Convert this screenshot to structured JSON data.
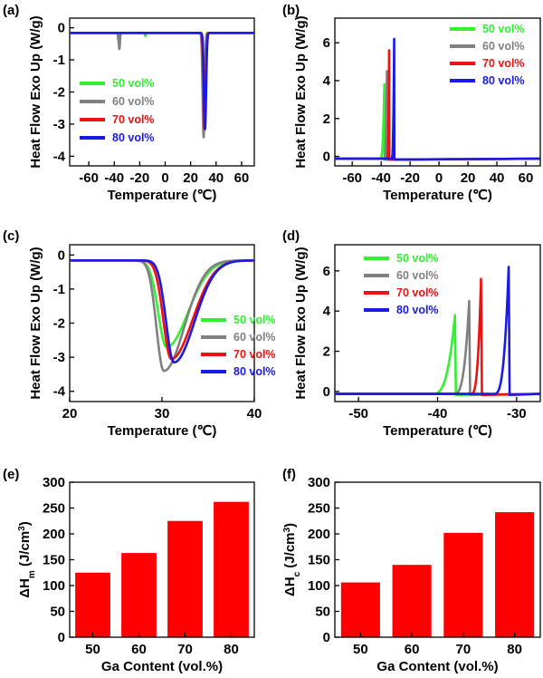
{
  "figure": {
    "background": "#ffffff",
    "series_colors": {
      "50 vol%": "#33ee33",
      "60 vol%": "#808080",
      "70 vol%": "#ee1111",
      "80 vol%": "#1a1ae6"
    }
  },
  "chart_data": [
    {
      "id": "a",
      "panel_label": "(a)",
      "type": "line",
      "title": "",
      "xlabel": "Temperature (℃)",
      "ylabel": "Heat Flow Exo Up (W/g)",
      "xlim": [
        -75,
        70
      ],
      "ylim": [
        -4.3,
        0.3
      ],
      "xticks": [
        -60,
        -40,
        -20,
        0,
        20,
        40,
        60
      ],
      "xtick_labels": [
        "-60",
        "-40",
        "-20",
        "0",
        "20",
        "40",
        "60"
      ],
      "yticks": [
        0,
        -1,
        -2,
        -3,
        -4
      ],
      "ytick_labels": [
        "0",
        "-1",
        "-2",
        "-3",
        "-4"
      ],
      "legend": {
        "position": "bottom-left",
        "entries": [
          "50 vol%",
          "60 vol%",
          "70 vol%",
          "80 vol%"
        ]
      },
      "series": [
        {
          "name": "50 vol%",
          "baseline": -0.16,
          "peaks": [
            {
              "x": -36.5,
              "depth": -0.28,
              "w": 0.5
            },
            {
              "x": -15.5,
              "depth": -0.1,
              "w": 0.4
            },
            {
              "x": 30.5,
              "depth": -2.55,
              "w": 0.9
            }
          ]
        },
        {
          "name": "60 vol%",
          "baseline": -0.16,
          "peaks": [
            {
              "x": -36,
              "depth": -0.5,
              "w": 0.45
            },
            {
              "x": 30.2,
              "depth": -3.25,
              "w": 0.8
            }
          ]
        },
        {
          "name": "70 vol%",
          "baseline": -0.16,
          "peaks": [
            {
              "x": 31,
              "depth": -3.0,
              "w": 0.85
            }
          ]
        },
        {
          "name": "80 vol%",
          "baseline": -0.16,
          "peaks": [
            {
              "x": 31.3,
              "depth": -3.0,
              "w": 0.85
            }
          ]
        }
      ]
    },
    {
      "id": "b",
      "panel_label": "(b)",
      "type": "line",
      "title": "",
      "xlabel": "Temperature (℃)",
      "ylabel": "Heat Flow Exo Up (W/g)",
      "xlim": [
        -72,
        70
      ],
      "ylim": [
        -0.5,
        7.3
      ],
      "xticks": [
        -60,
        -40,
        -20,
        0,
        20,
        40,
        60
      ],
      "xtick_labels": [
        "-60",
        "-40",
        "-20",
        "0",
        "20",
        "40",
        "60"
      ],
      "yticks": [
        0,
        2,
        4,
        6
      ],
      "ytick_labels": [
        "0",
        "2",
        "4",
        "6"
      ],
      "legend": {
        "position": "top-right",
        "entries": [
          "50 vol%",
          "60 vol%",
          "70 vol%",
          "80 vol%"
        ]
      },
      "series": [
        {
          "name": "50 vol%",
          "baseline": -0.12,
          "peak_x": -37.8,
          "peak_y": 3.8,
          "rise": 3.0
        },
        {
          "name": "60 vol%",
          "baseline": -0.12,
          "peak_x": -36.0,
          "peak_y": 4.5,
          "rise": 2.0
        },
        {
          "name": "70 vol%",
          "baseline": -0.12,
          "peak_x": -34.5,
          "peak_y": 5.6,
          "rise": 1.3
        },
        {
          "name": "80 vol%",
          "baseline": -0.12,
          "peak_x": -31.0,
          "peak_y": 6.2,
          "rise": 1.9
        }
      ]
    },
    {
      "id": "c",
      "panel_label": "(c)",
      "type": "line",
      "title": "",
      "xlabel": "Temperature (℃)",
      "ylabel": "Heat Flow Exo Up (W/g)",
      "xlim": [
        20,
        40
      ],
      "ylim": [
        -4.3,
        0.3
      ],
      "xticks": [
        20,
        30,
        40
      ],
      "xtick_labels": [
        "20",
        "30",
        "40"
      ],
      "yticks": [
        0,
        -1,
        -2,
        -3,
        -4
      ],
      "ytick_labels": [
        "0",
        "-1",
        "-2",
        "-3",
        "-4"
      ],
      "legend": {
        "position": "bottom-right",
        "entries": [
          "50 vol%",
          "60 vol%",
          "70 vol%",
          "80 vol%"
        ]
      },
      "series": [
        {
          "name": "50 vol%",
          "baseline": -0.16,
          "peak_x": 30.5,
          "peak_y": -2.7,
          "wl": 0.9,
          "wr": 2.3
        },
        {
          "name": "60 vol%",
          "baseline": -0.16,
          "peak_x": 30.2,
          "peak_y": -3.4,
          "wl": 0.8,
          "wr": 2.2
        },
        {
          "name": "70 vol%",
          "baseline": -0.16,
          "peak_x": 31.0,
          "peak_y": -3.05,
          "wl": 0.85,
          "wr": 2.3
        },
        {
          "name": "80 vol%",
          "baseline": -0.16,
          "peak_x": 31.3,
          "peak_y": -3.15,
          "wl": 0.85,
          "wr": 2.2
        }
      ]
    },
    {
      "id": "d",
      "panel_label": "(d)",
      "type": "line",
      "title": "",
      "xlabel": "Temperature (℃)",
      "ylabel": "Heat Flow Exo Up (W/g)",
      "xlim": [
        -53,
        -27
      ],
      "ylim": [
        -0.5,
        7.3
      ],
      "xticks": [
        -50,
        -40,
        -30
      ],
      "xtick_labels": [
        "-50",
        "-40",
        "-30"
      ],
      "yticks": [
        0,
        2,
        4,
        6
      ],
      "ytick_labels": [
        "0",
        "2",
        "4",
        "6"
      ],
      "legend": {
        "position": "top-left",
        "entries": [
          "50 vol%",
          "60 vol%",
          "70 vol%",
          "80 vol%"
        ]
      },
      "series": [
        {
          "name": "50 vol%",
          "baseline": -0.12,
          "peak_x": -37.8,
          "peak_y": 3.8,
          "rise": 3.0
        },
        {
          "name": "60 vol%",
          "baseline": -0.12,
          "peak_x": -36.0,
          "peak_y": 4.5,
          "rise": 2.0
        },
        {
          "name": "70 vol%",
          "baseline": -0.12,
          "peak_x": -34.5,
          "peak_y": 5.6,
          "rise": 1.3
        },
        {
          "name": "80 vol%",
          "baseline": -0.12,
          "peak_x": -31.0,
          "peak_y": 6.2,
          "rise": 1.9
        }
      ]
    },
    {
      "id": "e",
      "panel_label": "(e)",
      "type": "bar",
      "title": "",
      "xlabel": "Ga Content (vol.%)",
      "ylabel_main": "ΔH",
      "ylabel_sub": "m",
      "ylabel_rest": " (J/cm",
      "ylabel_sup": "3",
      "ylabel_end": ")",
      "categories": [
        "50",
        "60",
        "70",
        "80"
      ],
      "values": [
        125,
        163,
        225,
        262
      ],
      "ylim": [
        0,
        300
      ],
      "yticks": [
        0,
        50,
        100,
        150,
        200,
        250,
        300
      ],
      "ytick_labels": [
        "0",
        "50",
        "100",
        "150",
        "200",
        "250",
        "300"
      ],
      "bar_color": "#ff0000"
    },
    {
      "id": "f",
      "panel_label": "(f)",
      "type": "bar",
      "title": "",
      "xlabel": "Ga Content (vol.%)",
      "ylabel_main": "ΔH",
      "ylabel_sub": "c",
      "ylabel_rest": " (J/cm",
      "ylabel_sup": "3",
      "ylabel_end": ")",
      "categories": [
        "50",
        "60",
        "70",
        "80"
      ],
      "values": [
        106,
        140,
        202,
        242
      ],
      "ylim": [
        0,
        300
      ],
      "yticks": [
        0,
        50,
        100,
        150,
        200,
        250,
        300
      ],
      "ytick_labels": [
        "0",
        "50",
        "100",
        "150",
        "200",
        "250",
        "300"
      ],
      "bar_color": "#ff0000"
    }
  ]
}
